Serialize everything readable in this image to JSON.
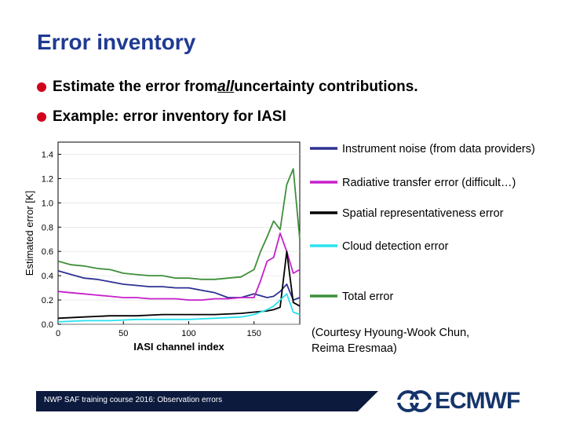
{
  "slide": {
    "title": "Error inventory",
    "bullets": [
      {
        "before": "Estimate the error from ",
        "emph": "all",
        "after": " uncertainty contributions."
      },
      {
        "before": "Example: error inventory for IASI",
        "emph": "",
        "after": ""
      }
    ],
    "courtesy_line1": "(Courtesy Hyoung-Wook Chun,",
    "courtesy_line2": "Reima Eresmaa)",
    "footer": "NWP SAF training course 2016: Observation errors",
    "logo_text": "ECMWF",
    "bullet_color": "#d0021b",
    "title_color": "#1f3a93"
  },
  "chart_data": {
    "type": "line",
    "xlabel": "IASI channel index",
    "ylabel": "Estimated error [K]",
    "xlim": [
      0,
      185
    ],
    "ylim": [
      0,
      1.5
    ],
    "xticks": [
      0,
      50,
      100,
      150
    ],
    "yticks": [
      0.0,
      0.2,
      0.4,
      0.6,
      0.8,
      1.0,
      1.2,
      1.4
    ],
    "legend_position": "right",
    "series": [
      {
        "name": "Instrument noise (from data providers)",
        "color": "#2e3192",
        "x": [
          0,
          10,
          20,
          30,
          40,
          50,
          60,
          70,
          80,
          90,
          100,
          110,
          120,
          130,
          140,
          150,
          160,
          165,
          170,
          175,
          180,
          185
        ],
        "y": [
          0.44,
          0.41,
          0.38,
          0.37,
          0.35,
          0.33,
          0.32,
          0.31,
          0.31,
          0.3,
          0.3,
          0.28,
          0.26,
          0.22,
          0.22,
          0.25,
          0.22,
          0.23,
          0.27,
          0.33,
          0.2,
          0.22
        ]
      },
      {
        "name": "Radiative transfer error (difficult…)",
        "color": "#c61fcb",
        "x": [
          0,
          10,
          20,
          30,
          40,
          50,
          60,
          70,
          80,
          90,
          100,
          110,
          120,
          130,
          140,
          150,
          155,
          160,
          165,
          170,
          175,
          180,
          185
        ],
        "y": [
          0.27,
          0.26,
          0.25,
          0.24,
          0.23,
          0.22,
          0.22,
          0.21,
          0.21,
          0.21,
          0.2,
          0.2,
          0.21,
          0.21,
          0.22,
          0.22,
          0.36,
          0.52,
          0.55,
          0.75,
          0.6,
          0.42,
          0.45
        ]
      },
      {
        "name": "Spatial representativeness error",
        "color": "#000000",
        "x": [
          0,
          20,
          40,
          60,
          80,
          100,
          120,
          140,
          150,
          160,
          165,
          170,
          175,
          180,
          185
        ],
        "y": [
          0.05,
          0.06,
          0.07,
          0.07,
          0.08,
          0.08,
          0.08,
          0.09,
          0.1,
          0.11,
          0.12,
          0.14,
          0.6,
          0.18,
          0.15
        ]
      },
      {
        "name": "Cloud detection error",
        "color": "#29e2ee",
        "x": [
          0,
          20,
          40,
          60,
          80,
          100,
          120,
          140,
          150,
          160,
          165,
          170,
          175,
          180,
          185
        ],
        "y": [
          0.02,
          0.03,
          0.03,
          0.04,
          0.04,
          0.04,
          0.05,
          0.06,
          0.08,
          0.12,
          0.15,
          0.2,
          0.25,
          0.1,
          0.08
        ]
      },
      {
        "name": "Total error",
        "color": "#3f8f3a",
        "x": [
          0,
          10,
          20,
          30,
          40,
          50,
          60,
          70,
          80,
          90,
          100,
          110,
          120,
          130,
          140,
          150,
          155,
          160,
          165,
          170,
          175,
          180,
          185
        ],
        "y": [
          0.52,
          0.49,
          0.48,
          0.46,
          0.45,
          0.42,
          0.41,
          0.4,
          0.4,
          0.38,
          0.38,
          0.37,
          0.37,
          0.38,
          0.39,
          0.45,
          0.6,
          0.72,
          0.85,
          0.78,
          1.15,
          1.28,
          0.7
        ]
      }
    ]
  }
}
